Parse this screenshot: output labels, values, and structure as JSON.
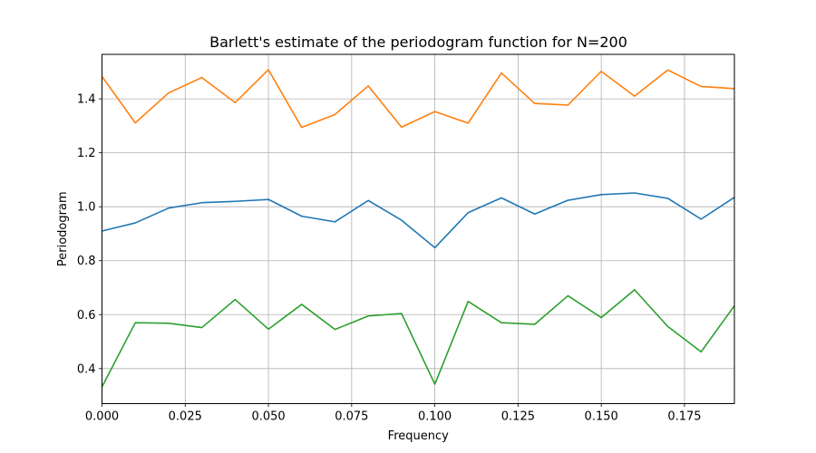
{
  "chart_data": {
    "type": "line",
    "title": "Barlett's estimate of the periodogram function for N=200",
    "xlabel": "Frequency",
    "ylabel": "Periodogram",
    "xlim": [
      0.0,
      0.19
    ],
    "ylim": [
      0.27,
      1.565
    ],
    "grid": true,
    "x": [
      0.0,
      0.01,
      0.02,
      0.03,
      0.04,
      0.05,
      0.06,
      0.07,
      0.08,
      0.09,
      0.1,
      0.11,
      0.12,
      0.13,
      0.14,
      0.15,
      0.16,
      0.17,
      0.18,
      0.19
    ],
    "x_ticks": [
      {
        "value": 0.0,
        "label": "0.000"
      },
      {
        "value": 0.025,
        "label": "0.025"
      },
      {
        "value": 0.05,
        "label": "0.050"
      },
      {
        "value": 0.075,
        "label": "0.075"
      },
      {
        "value": 0.1,
        "label": "0.100"
      },
      {
        "value": 0.125,
        "label": "0.125"
      },
      {
        "value": 0.15,
        "label": "0.150"
      },
      {
        "value": 0.175,
        "label": "0.175"
      }
    ],
    "y_ticks": [
      {
        "value": 0.4,
        "label": "0.4"
      },
      {
        "value": 0.6,
        "label": "0.6"
      },
      {
        "value": 0.8,
        "label": "0.8"
      },
      {
        "value": 1.0,
        "label": "1.0"
      },
      {
        "value": 1.2,
        "label": "1.2"
      },
      {
        "value": 1.4,
        "label": "1.4"
      }
    ],
    "series": [
      {
        "color": "#1f77b4",
        "values": [
          0.91,
          0.94,
          0.995,
          1.015,
          1.02,
          1.027,
          0.965,
          0.944,
          1.023,
          0.95,
          0.848,
          0.978,
          1.033,
          0.973,
          1.024,
          1.045,
          1.051,
          1.031,
          0.954,
          1.035
        ]
      },
      {
        "color": "#ff7f0e",
        "values": [
          1.483,
          1.311,
          1.422,
          1.479,
          1.386,
          1.508,
          1.294,
          1.342,
          1.448,
          1.295,
          1.353,
          1.31,
          1.496,
          1.383,
          1.377,
          1.502,
          1.41,
          1.507,
          1.446,
          1.438
        ]
      },
      {
        "color": "#2ca02c",
        "values": [
          0.332,
          0.57,
          0.568,
          0.552,
          0.656,
          0.546,
          0.638,
          0.545,
          0.595,
          0.604,
          0.342,
          0.649,
          0.57,
          0.564,
          0.67,
          0.589,
          0.692,
          0.556,
          0.462,
          0.633
        ]
      }
    ]
  }
}
